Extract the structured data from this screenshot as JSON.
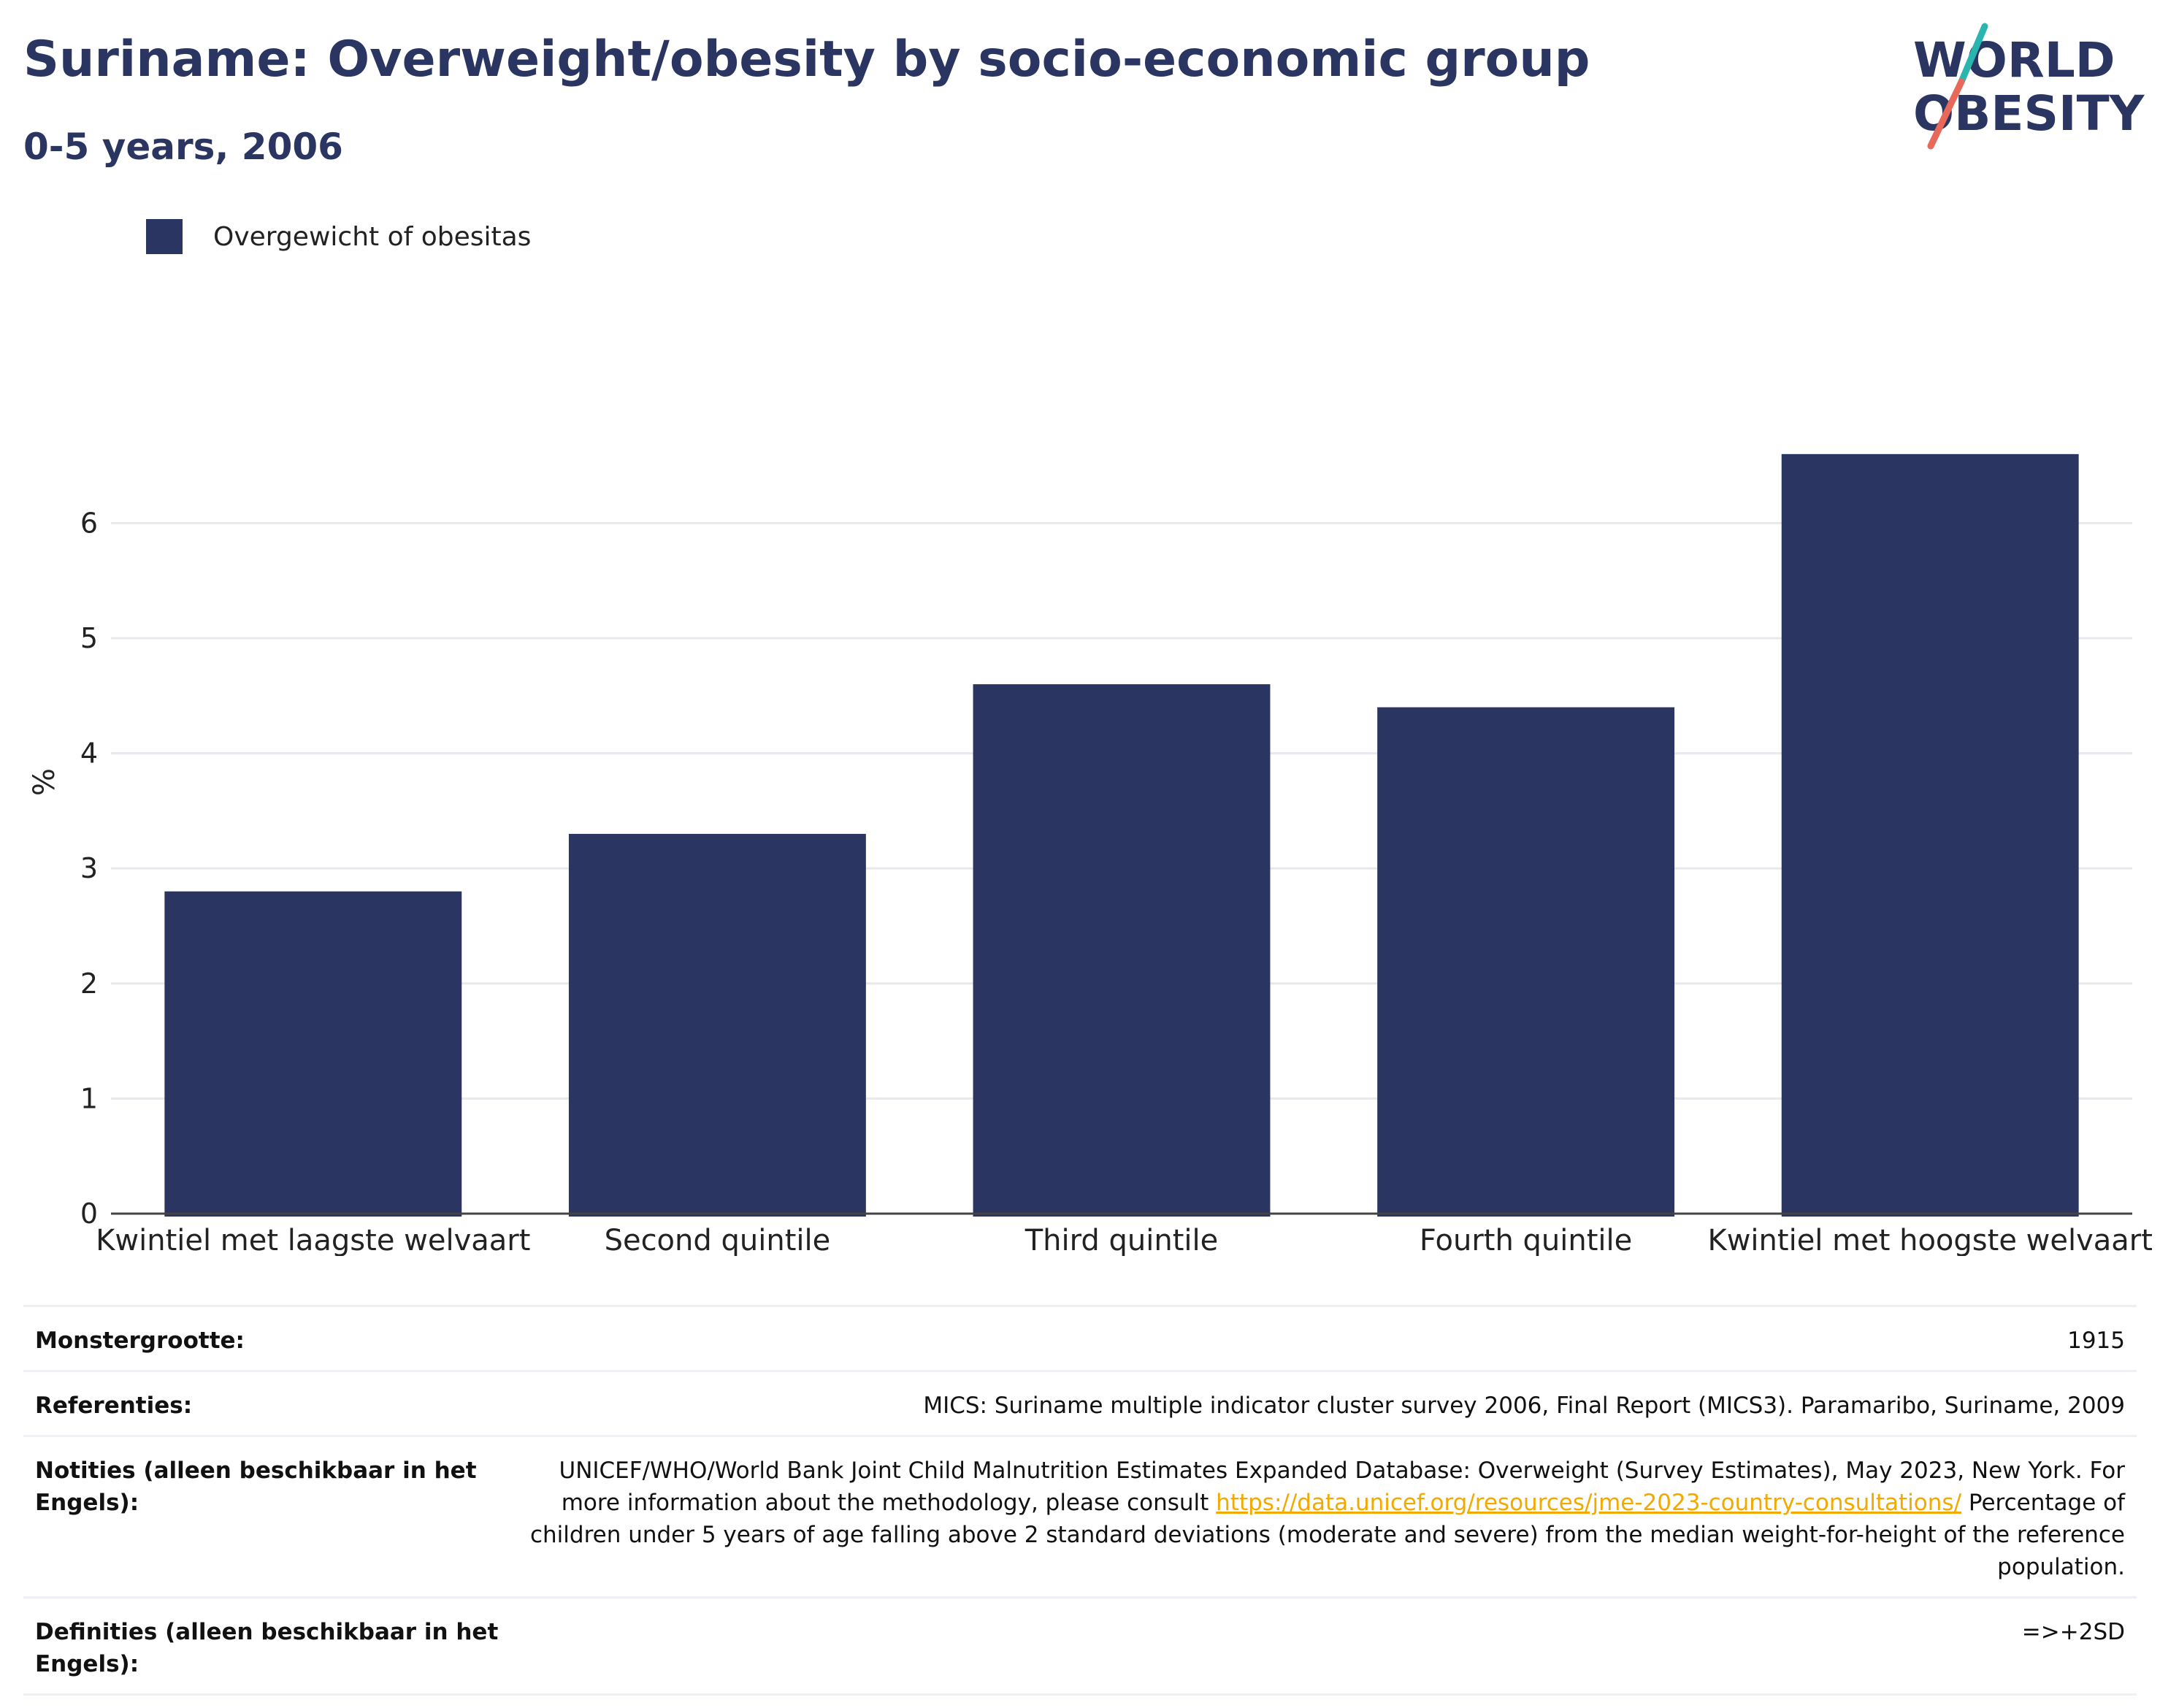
{
  "header": {
    "title": "Suriname: Overweight/obesity by socio-economic group",
    "subtitle": "0-5 years, 2006"
  },
  "logo": {
    "line1": "WORLD",
    "line2": "OBESITY",
    "accent_teal": "#2bb5b0",
    "accent_coral": "#e8685a",
    "text_color": "#2b3561"
  },
  "legend": {
    "label": "Overgewicht of obesitas",
    "color": "#2b3561",
    "placement": "top-left"
  },
  "chart_data": {
    "type": "bar",
    "categories": [
      "Kwintiel met laagste welvaart",
      "Second quintile",
      "Third quintile",
      "Fourth quintile",
      "Kwintiel met hoogste welvaart"
    ],
    "series": [
      {
        "name": "Overgewicht of obesitas",
        "values": [
          2.8,
          3.3,
          4.6,
          4.4,
          6.6
        ],
        "color": "#2b3561"
      }
    ],
    "ylabel": "%",
    "ylim": [
      0,
      7.5
    ],
    "yticks": [
      0,
      1,
      2,
      3,
      4,
      5,
      6
    ],
    "grid": true,
    "bar_color": "#2b3561"
  },
  "meta": {
    "rows": [
      {
        "key": "Monstergrootte:",
        "value": "1915"
      },
      {
        "key": "Referenties:",
        "value": "MICS: Suriname multiple indicator cluster survey 2006, Final Report (MICS3). Paramaribo, Suriname, 2009"
      },
      {
        "key": "Notities (alleen beschikbaar in het Engels):",
        "value_before": "UNICEF/WHO/World Bank Joint Child Malnutrition Estimates Expanded Database: Overweight (Survey Estimates), May 2023, New York. For more information about the methodology, please consult",
        "link": "https://data.unicef.org/resources/jme-2023-country-consultations/",
        "value_after": "Percentage of children under 5 years of age falling above 2 standard deviations (moderate and severe) from the median weight-for-height of the reference population."
      },
      {
        "key": "Definities (alleen beschikbaar in het Engels):",
        "value": "=>+2SD"
      }
    ]
  }
}
